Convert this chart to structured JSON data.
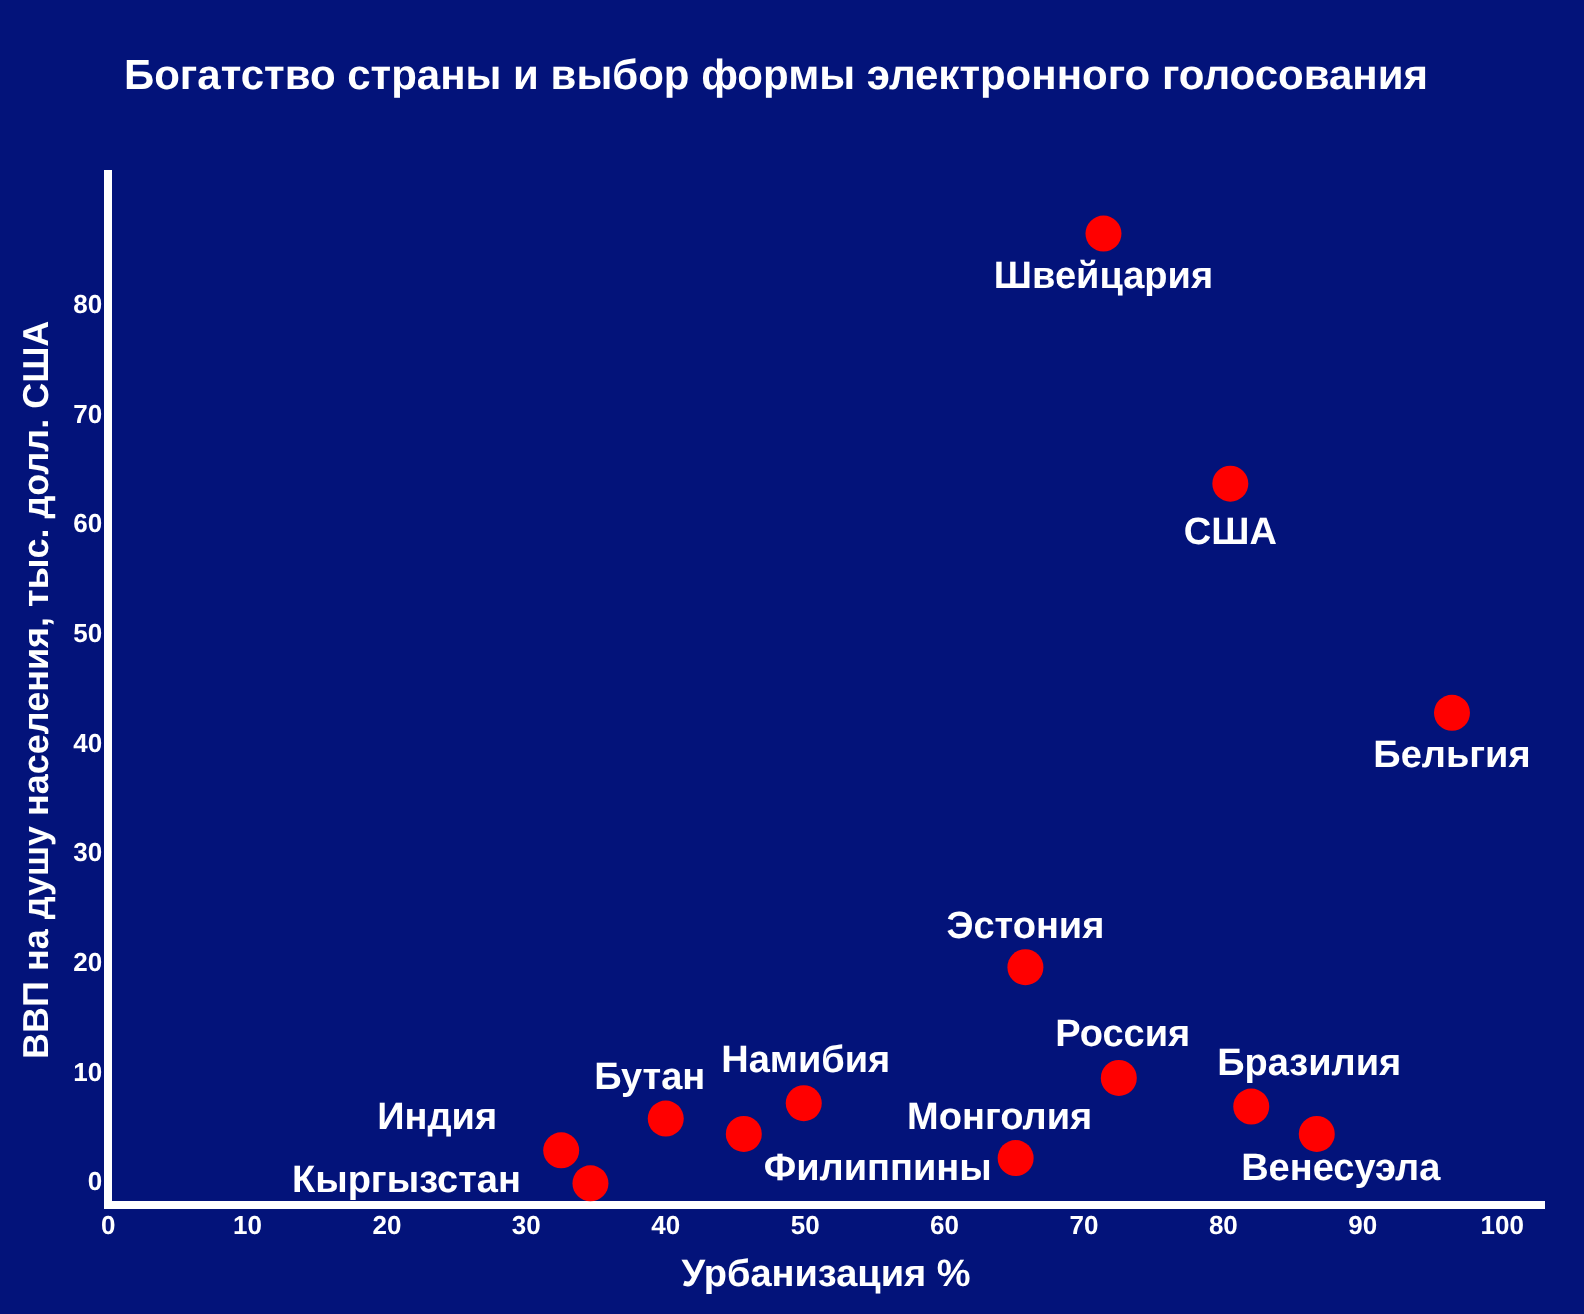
{
  "chart_data": {
    "type": "scatter",
    "title": "Богатство страны и выбор формы электронного голосования",
    "xlabel": "Урбанизация %",
    "ylabel": "ВВП на душу населения, тыс. долл. США",
    "series": [
      {
        "color": "#ff0000",
        "x": [
          71.4,
          80.5,
          96.4,
          65.8,
          72.5,
          82.0,
          86.7,
          65.1,
          49.9,
          45.6,
          40.0,
          32.5,
          34.6
        ],
        "values": [
          86.6,
          63.8,
          42.9,
          19.7,
          9.6,
          7.0,
          4.5,
          2.3,
          7.3,
          4.5,
          5.9,
          3.0,
          0
        ]
      }
    ],
    "annotations": [
      {
        "text": "Швейцария",
        "x": 71.4,
        "y": 86.6
      },
      {
        "text": "США",
        "x": 80.5,
        "y": 63.8
      },
      {
        "text": "Бельгия",
        "x": 96.4,
        "y": 42.9
      },
      {
        "text": "Эстония",
        "x": 65.8,
        "y": 19.7
      },
      {
        "text": "Россия",
        "x": 72.5,
        "y": 9.6
      },
      {
        "text": "Бразилия",
        "x": 82.0,
        "y": 7.0
      },
      {
        "text": "Венесуэла",
        "x": 86.7,
        "y": 4.5
      },
      {
        "text": "Монголия",
        "x": 65.1,
        "y": 2.3
      },
      {
        "text": "Намибия",
        "x": 49.9,
        "y": 7.3
      },
      {
        "text": "Филиппины",
        "x": 45.6,
        "y": 4.5
      },
      {
        "text": "Бутан",
        "x": 40.0,
        "y": 5.9
      },
      {
        "text": "Индия",
        "x": 32.5,
        "y": 3.0
      },
      {
        "text": "Кыргызстан",
        "x": 34.6,
        "y": 0
      }
    ],
    "xlim": [
      0,
      103
    ],
    "xticks": [
      0,
      10,
      20,
      30,
      40,
      50,
      60,
      70,
      80,
      90,
      100
    ],
    "ylim": [
      -2,
      92
    ],
    "yticks": [
      0,
      10,
      20,
      30,
      40,
      50,
      60,
      70,
      80
    ],
    "marker": "circle",
    "grid": false,
    "legend": false
  }
}
